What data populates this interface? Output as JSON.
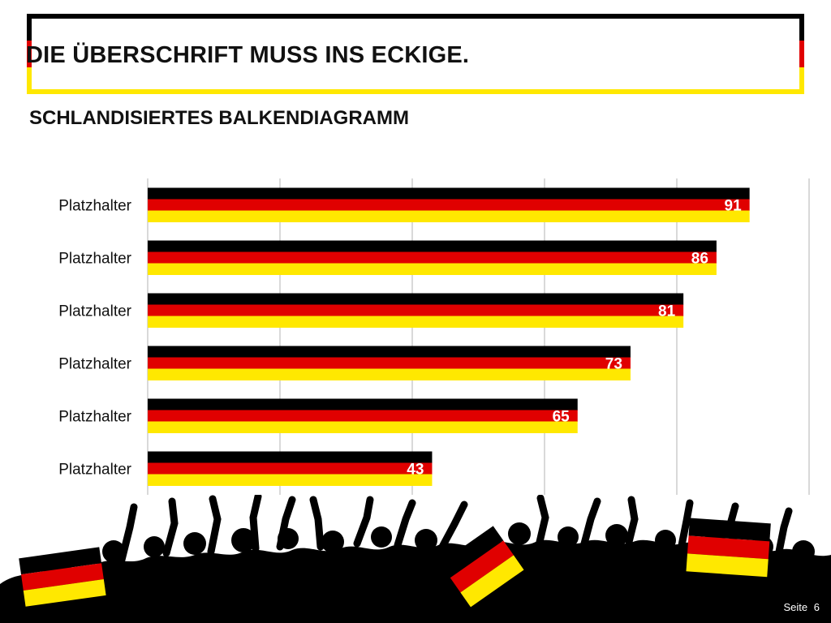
{
  "header": {
    "title": "DIE ÜBERSCHRIFT MUSS INS ECKIGE.",
    "subtitle": "SCHLANDISIERTES BALKENDIAGRAMM"
  },
  "colors": {
    "black": "#000000",
    "red": "#e00000",
    "gold": "#ffe800",
    "grid": "#d9d9d9"
  },
  "chart_data": {
    "type": "bar",
    "orientation": "horizontal",
    "categories": [
      "Platzhalter",
      "Platzhalter",
      "Platzhalter",
      "Platzhalter",
      "Platzhalter",
      "Platzhalter"
    ],
    "values": [
      91,
      86,
      81,
      73,
      65,
      43
    ],
    "xlim": [
      0,
      100
    ],
    "grid": true,
    "data_labels": true
  },
  "footer": {
    "page_label": "Seite",
    "page_number": "6"
  }
}
